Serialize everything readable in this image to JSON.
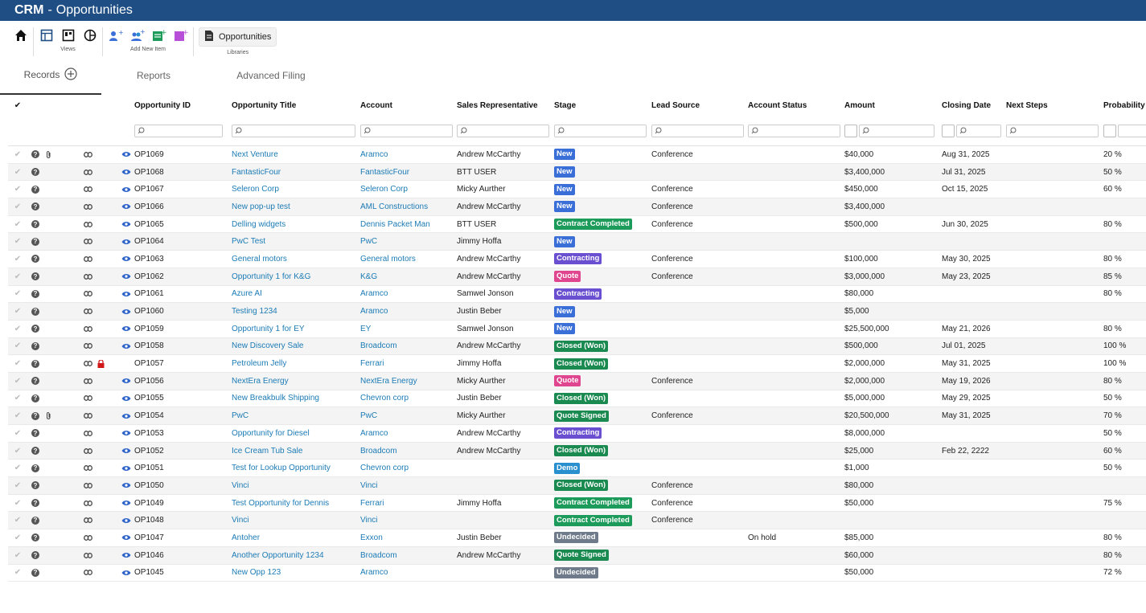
{
  "app": {
    "brand": "CRM",
    "separator": "-",
    "title": "Opportunities"
  },
  "ribbon": {
    "views_label": "Views",
    "add_label": "Add New Item",
    "libraries_button": "Opportunities",
    "libraries_label": "Libraries"
  },
  "tabs": {
    "records": "Records",
    "reports": "Reports",
    "advanced": "Advanced Filing"
  },
  "columns": {
    "id": "Opportunity ID",
    "title": "Opportunity Title",
    "account": "Account",
    "rep": "Sales Representative",
    "stage": "Stage",
    "lead": "Lead Source",
    "account_status": "Account Status",
    "amount": "Amount",
    "closing": "Closing Date",
    "next": "Next Steps",
    "probability": "Probability"
  },
  "stage_colors": {
    "New": "#3b6fd8",
    "Contract Completed": "#1d9b5a",
    "Contracting": "#6a4fd0",
    "Quote": "#e0458f",
    "Closed (Won)": "#1a8a50",
    "Quote Signed": "#1a8a50",
    "Demo": "#2a8fcf",
    "Undecided": "#6f7b8a"
  },
  "rows": [
    {
      "id": "OP1069",
      "title": "Next Venture",
      "account": "Aramco",
      "rep": "Andrew McCarthy",
      "stage": "New",
      "lead": "Conference",
      "astat": "",
      "amount": "$40,000",
      "close": "Aug 31, 2025",
      "next": "",
      "prob": "20 %",
      "clip": true,
      "lock": false
    },
    {
      "id": "OP1068",
      "title": "FantasticFour",
      "account": "FantasticFour",
      "rep": "BTT USER",
      "stage": "New",
      "lead": "",
      "astat": "",
      "amount": "$3,400,000",
      "close": "Jul 31, 2025",
      "next": "",
      "prob": "50 %",
      "clip": false,
      "lock": false
    },
    {
      "id": "OP1067",
      "title": "Seleron Corp",
      "account": "Seleron Corp",
      "rep": "Micky Aurther",
      "stage": "New",
      "lead": "Conference",
      "astat": "",
      "amount": "$450,000",
      "close": "Oct 15, 2025",
      "next": "",
      "prob": "60 %",
      "clip": false,
      "lock": false
    },
    {
      "id": "OP1066",
      "title": "New pop-up test",
      "account": "AML Constructions",
      "rep": "Andrew McCarthy",
      "stage": "New",
      "lead": "Conference",
      "astat": "",
      "amount": "$3,400,000",
      "close": "",
      "next": "",
      "prob": "",
      "clip": false,
      "lock": false
    },
    {
      "id": "OP1065",
      "title": "Delling widgets",
      "account": "Dennis Packet Man",
      "rep": "BTT USER",
      "stage": "Contract Completed",
      "lead": "Conference",
      "astat": "",
      "amount": "$500,000",
      "close": "Jun 30, 2025",
      "next": "",
      "prob": "80 %",
      "clip": false,
      "lock": false
    },
    {
      "id": "OP1064",
      "title": "PwC Test",
      "account": "PwC",
      "rep": "Jimmy Hoffa",
      "stage": "New",
      "lead": "",
      "astat": "",
      "amount": "",
      "close": "",
      "next": "",
      "prob": "",
      "clip": false,
      "lock": false
    },
    {
      "id": "OP1063",
      "title": "General motors",
      "account": "General motors",
      "rep": "Andrew McCarthy",
      "stage": "Contracting",
      "lead": "Conference",
      "astat": "",
      "amount": "$100,000",
      "close": "May 30, 2025",
      "next": "",
      "prob": "80 %",
      "clip": false,
      "lock": false
    },
    {
      "id": "OP1062",
      "title": "Opportunity 1 for K&G",
      "account": "K&G",
      "rep": "Andrew McCarthy",
      "stage": "Quote",
      "lead": "Conference",
      "astat": "",
      "amount": "$3,000,000",
      "close": "May 23, 2025",
      "next": "",
      "prob": "85 %",
      "clip": false,
      "lock": false
    },
    {
      "id": "OP1061",
      "title": "Azure AI",
      "account": "Aramco",
      "rep": "Samwel Jonson",
      "stage": "Contracting",
      "lead": "",
      "astat": "",
      "amount": "$80,000",
      "close": "",
      "next": "",
      "prob": "80 %",
      "clip": false,
      "lock": false
    },
    {
      "id": "OP1060",
      "title": "Testing 1234",
      "account": "Aramco",
      "rep": "Justin Beber",
      "stage": "New",
      "lead": "",
      "astat": "",
      "amount": "$5,000",
      "close": "",
      "next": "",
      "prob": "",
      "clip": false,
      "lock": false
    },
    {
      "id": "OP1059",
      "title": "Opportunity 1 for EY",
      "account": "EY",
      "rep": "Samwel Jonson",
      "stage": "New",
      "lead": "",
      "astat": "",
      "amount": "$25,500,000",
      "close": "May 21, 2026",
      "next": "",
      "prob": "80 %",
      "clip": false,
      "lock": false
    },
    {
      "id": "OP1058",
      "title": "New Discovery Sale",
      "account": "Broadcom",
      "rep": "Andrew McCarthy",
      "stage": "Closed (Won)",
      "lead": "",
      "astat": "",
      "amount": "$500,000",
      "close": "Jul 01, 2025",
      "next": "",
      "prob": "100 %",
      "clip": false,
      "lock": false
    },
    {
      "id": "OP1057",
      "title": "Petroleum Jelly",
      "account": "Ferrari",
      "rep": "Jimmy Hoffa",
      "stage": "Closed (Won)",
      "lead": "",
      "astat": "",
      "amount": "$2,000,000",
      "close": "May 31, 2025",
      "next": "",
      "prob": "100 %",
      "clip": false,
      "lock": true
    },
    {
      "id": "OP1056",
      "title": "NextEra Energy",
      "account": "NextEra Energy",
      "rep": "Micky Aurther",
      "stage": "Quote",
      "lead": "Conference",
      "astat": "",
      "amount": "$2,000,000",
      "close": "May 19, 2026",
      "next": "",
      "prob": "80 %",
      "clip": false,
      "lock": false
    },
    {
      "id": "OP1055",
      "title": "New Breakbulk Shipping",
      "account": "Chevron corp",
      "rep": "Justin Beber",
      "stage": "Closed (Won)",
      "lead": "",
      "astat": "",
      "amount": "$5,000,000",
      "close": "May 29, 2025",
      "next": "",
      "prob": "50 %",
      "clip": false,
      "lock": false
    },
    {
      "id": "OP1054",
      "title": "PwC",
      "account": "PwC",
      "rep": "Micky Aurther",
      "stage": "Quote Signed",
      "lead": "Conference",
      "astat": "",
      "amount": "$20,500,000",
      "close": "May 31, 2025",
      "next": "",
      "prob": "70 %",
      "clip": true,
      "lock": false
    },
    {
      "id": "OP1053",
      "title": "Opportunity for Diesel",
      "account": "Aramco",
      "rep": "Andrew McCarthy",
      "stage": "Contracting",
      "lead": "",
      "astat": "",
      "amount": "$8,000,000",
      "close": "",
      "next": "",
      "prob": "50 %",
      "clip": false,
      "lock": false
    },
    {
      "id": "OP1052",
      "title": "Ice Cream Tub Sale",
      "account": "Broadcom",
      "rep": "Andrew McCarthy",
      "stage": "Closed (Won)",
      "lead": "",
      "astat": "",
      "amount": "$25,000",
      "close": "Feb 22, 2222",
      "next": "",
      "prob": "60 %",
      "clip": false,
      "lock": false
    },
    {
      "id": "OP1051",
      "title": "Test for Lookup Opportunity",
      "account": "Chevron corp",
      "rep": "",
      "stage": "Demo",
      "lead": "",
      "astat": "",
      "amount": "$1,000",
      "close": "",
      "next": "",
      "prob": "50 %",
      "clip": false,
      "lock": false
    },
    {
      "id": "OP1050",
      "title": "Vinci",
      "account": "Vinci",
      "rep": "",
      "stage": "Closed (Won)",
      "lead": "Conference",
      "astat": "",
      "amount": "$80,000",
      "close": "",
      "next": "",
      "prob": "",
      "clip": false,
      "lock": false
    },
    {
      "id": "OP1049",
      "title": "Test Opportunity for Dennis",
      "account": "Ferrari",
      "rep": "Jimmy Hoffa",
      "stage": "Contract Completed",
      "lead": "Conference",
      "astat": "",
      "amount": "$50,000",
      "close": "",
      "next": "",
      "prob": "75 %",
      "clip": false,
      "lock": false
    },
    {
      "id": "OP1048",
      "title": "Vinci",
      "account": "Vinci",
      "rep": "",
      "stage": "Contract Completed",
      "lead": "Conference",
      "astat": "",
      "amount": "",
      "close": "",
      "next": "",
      "prob": "",
      "clip": false,
      "lock": false
    },
    {
      "id": "OP1047",
      "title": "Antoher",
      "account": "Exxon",
      "rep": "Justin Beber",
      "stage": "Undecided",
      "lead": "",
      "astat": "On hold",
      "amount": "$85,000",
      "close": "",
      "next": "",
      "prob": "80 %",
      "clip": false,
      "lock": false
    },
    {
      "id": "OP1046",
      "title": "Another Opportunity 1234",
      "account": "Broadcom",
      "rep": "Andrew McCarthy",
      "stage": "Quote Signed",
      "lead": "",
      "astat": "",
      "amount": "$60,000",
      "close": "",
      "next": "",
      "prob": "80 %",
      "clip": false,
      "lock": false
    },
    {
      "id": "OP1045",
      "title": "New Opp 123",
      "account": "Aramco",
      "rep": "",
      "stage": "Undecided",
      "lead": "",
      "astat": "",
      "amount": "$50,000",
      "close": "",
      "next": "",
      "prob": "72 %",
      "clip": false,
      "lock": false
    }
  ]
}
